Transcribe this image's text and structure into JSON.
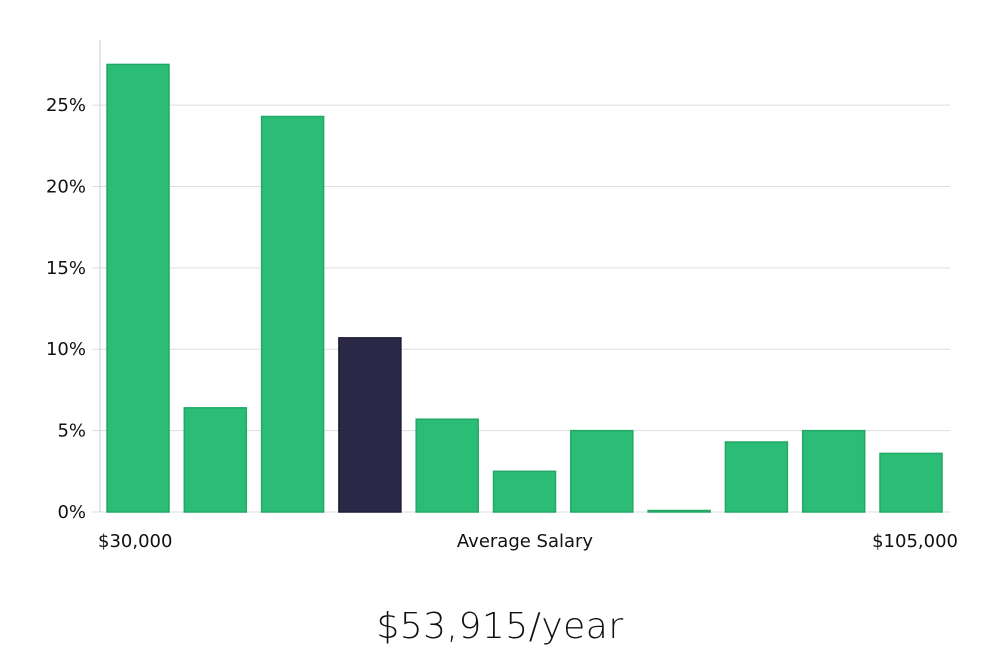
{
  "chart_data": {
    "type": "bar",
    "values": [
      27.5,
      6.4,
      24.3,
      10.7,
      5.7,
      2.5,
      5.0,
      0.05,
      4.3,
      5.0,
      3.6
    ],
    "highlight_index": 3,
    "ylim": [
      0,
      29
    ],
    "yticks": [
      0,
      5,
      10,
      15,
      20,
      25
    ],
    "ytick_labels": [
      "0%",
      "5%",
      "10%",
      "15%",
      "20%",
      "25%"
    ],
    "x_start_label": "$30,000",
    "x_end_label": "$105,000",
    "xlabel": "Average Salary",
    "grid": true,
    "colors": {
      "bar": "#2bbd76",
      "bar_edge": "#22a866",
      "highlight": "#2a2747",
      "grid": "#dddddd",
      "axis": "#cccccc"
    }
  },
  "headline": "$53,915/year"
}
